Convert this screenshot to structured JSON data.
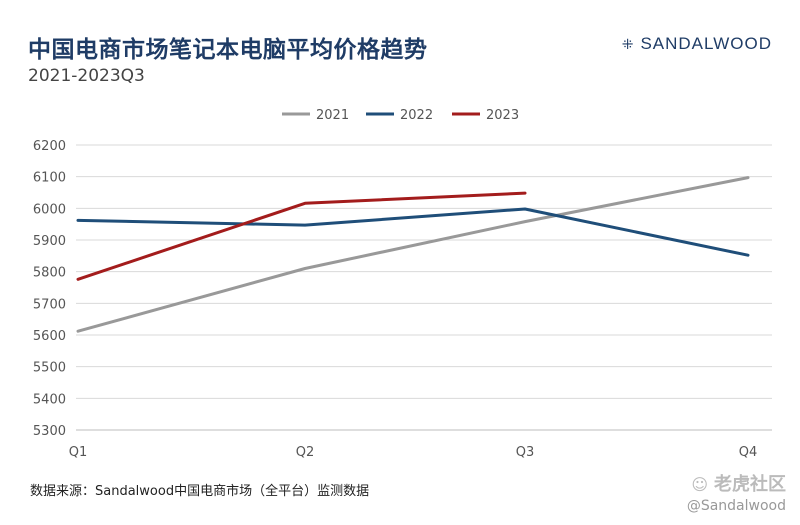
{
  "header": {
    "title": "中国电商市场笔记本电脑平均价格趋势",
    "subtitle": "2021-2023Q3",
    "brand": "SANDALWOOD",
    "brand_icon": "sparkle-dots-icon"
  },
  "footer": {
    "source": "数据来源：Sandalwood中国电商市场（全平台）监测数据",
    "watermark_text": "老虎社区",
    "watermark_handle": "@Sandalwood",
    "watermark_icon": "tiger-logo-icon"
  },
  "chart_data": {
    "type": "line",
    "title": "中国电商市场笔记本电脑平均价格趋势",
    "subtitle": "2021-2023Q3",
    "xlabel": "",
    "ylabel": "",
    "categories": [
      "Q1",
      "Q2",
      "Q3",
      "Q4"
    ],
    "ylim": [
      5300,
      6200
    ],
    "yticks": [
      5300,
      5400,
      5500,
      5600,
      5700,
      5800,
      5900,
      6000,
      6100,
      6200
    ],
    "grid": true,
    "legend_position": "top",
    "series": [
      {
        "name": "2021",
        "color": "#999999",
        "values": [
          5612,
          5810,
          5958,
          6097
        ]
      },
      {
        "name": "2022",
        "color": "#1f4e79",
        "values": [
          5962,
          5947,
          5998,
          5852
        ]
      },
      {
        "name": "2023",
        "color": "#a31c1c",
        "values": [
          5776,
          6016,
          6048,
          null
        ]
      }
    ]
  }
}
